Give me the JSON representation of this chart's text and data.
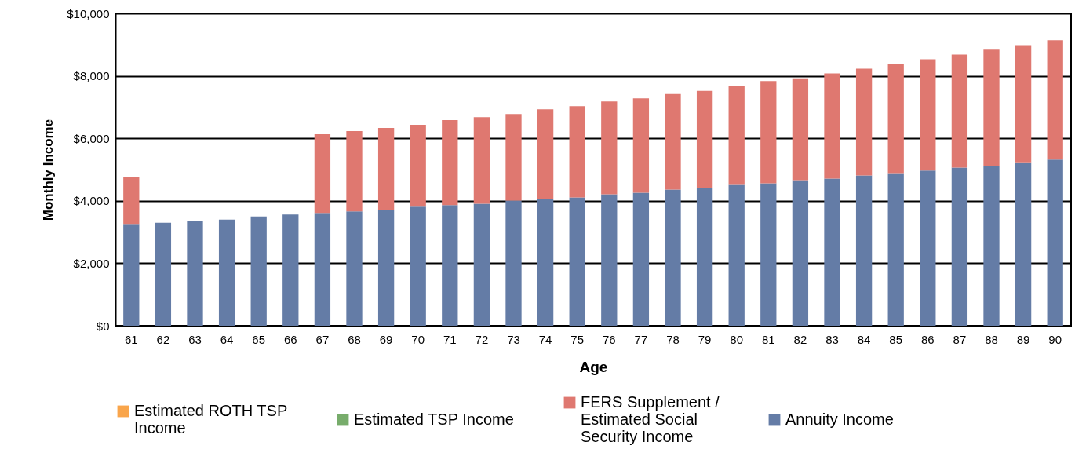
{
  "chart_data": {
    "type": "bar",
    "stacked": true,
    "xlabel": "Age",
    "ylabel": "Monthly Income",
    "categories": [
      "61",
      "62",
      "63",
      "64",
      "65",
      "66",
      "67",
      "68",
      "69",
      "70",
      "71",
      "72",
      "73",
      "74",
      "75",
      "76",
      "77",
      "78",
      "79",
      "80",
      "81",
      "82",
      "83",
      "84",
      "85",
      "86",
      "87",
      "88",
      "89",
      "90"
    ],
    "series": [
      {
        "name": "Annuity Income",
        "color": "#647ca6",
        "values": [
          3260,
          3300,
          3350,
          3400,
          3500,
          3560,
          3610,
          3660,
          3710,
          3810,
          3860,
          3910,
          4010,
          4060,
          4110,
          4210,
          4260,
          4360,
          4410,
          4510,
          4560,
          4660,
          4710,
          4810,
          4860,
          4970,
          5060,
          5110,
          5210,
          5320
        ]
      },
      {
        "name": "FERS Supplement / Estimated Social Security Income",
        "color": "#df7870",
        "values": [
          1510,
          null,
          null,
          null,
          null,
          null,
          2520,
          2570,
          2620,
          2620,
          2720,
          2770,
          2770,
          2870,
          2920,
          2970,
          3020,
          3060,
          3110,
          3170,
          3270,
          3260,
          3370,
          3420,
          3520,
          3560,
          3620,
          3730,
          3770,
          3820
        ]
      },
      {
        "name": "Estimated TSP Income",
        "color": "#77ac6b",
        "values": [
          null,
          null,
          null,
          null,
          null,
          null,
          null,
          null,
          null,
          null,
          null,
          null,
          null,
          null,
          null,
          null,
          null,
          null,
          null,
          null,
          null,
          null,
          null,
          null,
          null,
          null,
          null,
          null,
          null,
          null
        ]
      },
      {
        "name": "Estimated ROTH TSP Income",
        "color": "#f9a54b",
        "values": [
          null,
          null,
          null,
          null,
          null,
          null,
          null,
          null,
          null,
          null,
          null,
          null,
          null,
          null,
          null,
          null,
          null,
          null,
          null,
          null,
          null,
          null,
          null,
          null,
          null,
          null,
          null,
          null,
          null,
          null
        ]
      }
    ],
    "ylim": [
      0,
      10000
    ],
    "yticks": [
      {
        "value": 0,
        "label": "$0"
      },
      {
        "value": 2000,
        "label": "$2,000"
      },
      {
        "value": 4000,
        "label": "$4,000"
      },
      {
        "value": 6000,
        "label": "$6,000"
      },
      {
        "value": 8000,
        "label": "$8,000"
      },
      {
        "value": 10000,
        "label": "$10,000"
      }
    ],
    "grid": "y",
    "legend": "bottom"
  }
}
